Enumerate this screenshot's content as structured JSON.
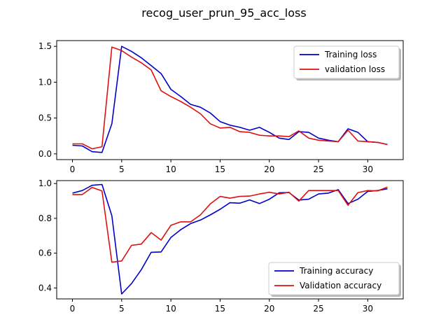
{
  "figure": {
    "title": "recog_user_prun_95_acc_loss"
  },
  "chart_data": [
    {
      "type": "line",
      "title": "",
      "xlabel": "",
      "ylabel": "",
      "xlim": [
        -1.6,
        33.6
      ],
      "ylim": [
        -0.08,
        1.58
      ],
      "xticks": [
        0,
        5,
        10,
        15,
        20,
        25,
        30
      ],
      "yticks": [
        0.0,
        0.5,
        1.0,
        1.5
      ],
      "ytick_labels": [
        "0.0",
        "0.5",
        "1.0",
        "1.5"
      ],
      "grid": false,
      "legend_position": "upper right",
      "x": [
        0,
        1,
        2,
        3,
        4,
        5,
        6,
        7,
        8,
        9,
        10,
        11,
        12,
        13,
        14,
        15,
        16,
        17,
        18,
        19,
        20,
        21,
        22,
        23,
        24,
        25,
        26,
        27,
        28,
        29,
        30,
        31,
        32
      ],
      "series": [
        {
          "name": "Training loss",
          "color": "#0000cc",
          "values": [
            0.12,
            0.11,
            0.03,
            0.02,
            0.42,
            1.5,
            1.43,
            1.34,
            1.23,
            1.12,
            0.9,
            0.8,
            0.69,
            0.65,
            0.57,
            0.45,
            0.4,
            0.37,
            0.33,
            0.37,
            0.3,
            0.22,
            0.2,
            0.31,
            0.3,
            0.22,
            0.19,
            0.17,
            0.35,
            0.3,
            0.17,
            0.16,
            0.13
          ]
        },
        {
          "name": "validation loss",
          "color": "#dd1111",
          "values": [
            0.14,
            0.14,
            0.07,
            0.1,
            1.49,
            1.44,
            1.35,
            1.27,
            1.17,
            0.88,
            0.8,
            0.73,
            0.65,
            0.56,
            0.42,
            0.36,
            0.37,
            0.31,
            0.3,
            0.26,
            0.25,
            0.25,
            0.24,
            0.32,
            0.22,
            0.19,
            0.18,
            0.17,
            0.33,
            0.18,
            0.17,
            0.16,
            0.13
          ]
        }
      ]
    },
    {
      "type": "line",
      "title": "",
      "xlabel": "",
      "ylabel": "",
      "xlim": [
        -1.6,
        33.6
      ],
      "ylim": [
        0.337,
        1.017
      ],
      "xticks": [
        0,
        5,
        10,
        15,
        20,
        25,
        30
      ],
      "yticks": [
        0.4,
        0.6,
        0.8,
        1.0
      ],
      "ytick_labels": [
        "0.4",
        "0.6",
        "0.8",
        "1.0"
      ],
      "grid": false,
      "legend_position": "lower right",
      "x": [
        0,
        1,
        2,
        3,
        4,
        5,
        6,
        7,
        8,
        9,
        10,
        11,
        12,
        13,
        14,
        15,
        16,
        17,
        18,
        19,
        20,
        21,
        22,
        23,
        24,
        25,
        26,
        27,
        28,
        29,
        30,
        31,
        32
      ],
      "series": [
        {
          "name": "Training accuracy",
          "color": "#0000cc",
          "values": [
            0.945,
            0.96,
            0.99,
            0.995,
            0.815,
            0.365,
            0.425,
            0.505,
            0.605,
            0.607,
            0.69,
            0.735,
            0.77,
            0.79,
            0.82,
            0.852,
            0.89,
            0.887,
            0.906,
            0.885,
            0.91,
            0.947,
            0.948,
            0.905,
            0.91,
            0.94,
            0.945,
            0.965,
            0.885,
            0.91,
            0.955,
            0.96,
            0.97
          ]
        },
        {
          "name": "Validation accuracy",
          "color": "#dd1111",
          "values": [
            0.937,
            0.937,
            0.978,
            0.958,
            0.548,
            0.555,
            0.645,
            0.652,
            0.718,
            0.675,
            0.76,
            0.78,
            0.78,
            0.82,
            0.883,
            0.926,
            0.916,
            0.926,
            0.928,
            0.94,
            0.95,
            0.94,
            0.95,
            0.899,
            0.96,
            0.96,
            0.96,
            0.96,
            0.875,
            0.948,
            0.96,
            0.958,
            0.98
          ]
        }
      ]
    }
  ]
}
